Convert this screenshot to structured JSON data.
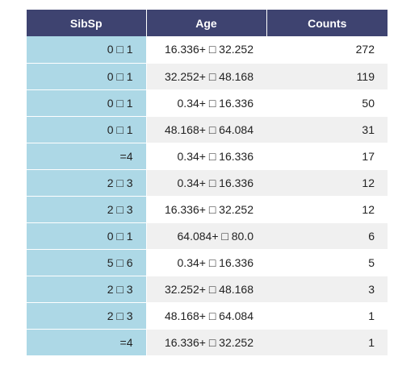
{
  "chart_data": {
    "type": "table",
    "columns": [
      "SibSp",
      "Age",
      "Counts"
    ],
    "rows": [
      {
        "sibsp": "0 □ 1",
        "age": "16.336+ □ 32.252",
        "counts": 272
      },
      {
        "sibsp": "0 □ 1",
        "age": "32.252+ □ 48.168",
        "counts": 119
      },
      {
        "sibsp": "0 □ 1",
        "age": "0.34+ □ 16.336",
        "counts": 50
      },
      {
        "sibsp": "0 □ 1",
        "age": "48.168+ □ 64.084",
        "counts": 31
      },
      {
        "sibsp": "=4",
        "age": "0.34+ □ 16.336",
        "counts": 17
      },
      {
        "sibsp": "2 □ 3",
        "age": "0.34+ □ 16.336",
        "counts": 12
      },
      {
        "sibsp": "2 □ 3",
        "age": "16.336+ □ 32.252",
        "counts": 12
      },
      {
        "sibsp": "0 □ 1",
        "age": "64.084+ □ 80.0",
        "counts": 6
      },
      {
        "sibsp": "5 □ 6",
        "age": "0.34+ □ 16.336",
        "counts": 5
      },
      {
        "sibsp": "2 □ 3",
        "age": "32.252+ □ 48.168",
        "counts": 3
      },
      {
        "sibsp": "2 □ 3",
        "age": "48.168+ □ 64.084",
        "counts": 1
      },
      {
        "sibsp": "=4",
        "age": "16.336+ □ 32.252",
        "counts": 1
      }
    ],
    "colors": {
      "header": "#3e4370",
      "header_text": "#ffffff",
      "first_column": "#add8e6",
      "row_stripe": "#f0f0f0"
    }
  }
}
